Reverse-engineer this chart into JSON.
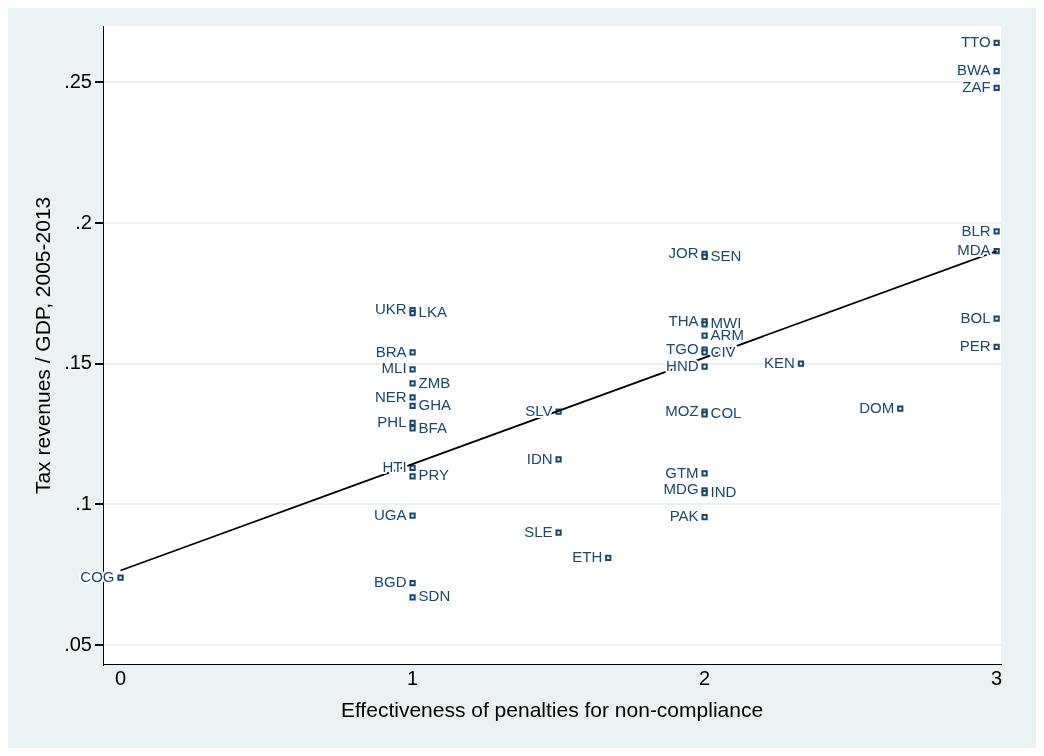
{
  "chart_data": {
    "type": "scatter",
    "xlabel": "Effectiveness of penalties for non-compliance",
    "ylabel": "Tax revenues / GDP, 2005-2013",
    "xlim": [
      -0.06,
      3.015
    ],
    "ylim": [
      0.043,
      0.27
    ],
    "xticks": [
      0,
      1,
      2,
      3
    ],
    "yticks": [
      {
        "value": 0.05,
        "label": ".05"
      },
      {
        "value": 0.1,
        "label": ".1"
      },
      {
        "value": 0.15,
        "label": ".15"
      },
      {
        "value": 0.2,
        "label": ".2"
      },
      {
        "value": 0.25,
        "label": ".25"
      }
    ],
    "grid": "y",
    "legend": false,
    "marker": "square",
    "series": [
      {
        "type": "scatter",
        "color": "#1a476f",
        "x": [
          3,
          3,
          3,
          3,
          3,
          3,
          3,
          2.33,
          2.67,
          2,
          2,
          2,
          2,
          2,
          2,
          2,
          2,
          2,
          2,
          2,
          2,
          2,
          2,
          1.5,
          1.5,
          1.5,
          1.67,
          1,
          1,
          1,
          1,
          1,
          1,
          1,
          1,
          1,
          1,
          1,
          1,
          1,
          1,
          0
        ],
        "values": [
          0.264,
          0.254,
          0.248,
          0.197,
          0.19,
          0.166,
          0.156,
          0.15,
          0.134,
          0.189,
          0.188,
          0.165,
          0.164,
          0.16,
          0.155,
          0.154,
          0.149,
          0.133,
          0.132,
          0.111,
          0.105,
          0.104,
          0.0955,
          0.133,
          0.116,
          0.09,
          0.081,
          0.169,
          0.168,
          0.154,
          0.148,
          0.143,
          0.138,
          0.135,
          0.129,
          0.127,
          0.113,
          0.11,
          0.096,
          0.072,
          0.067,
          0.074
        ]
      },
      {
        "type": "line",
        "color": "#000000",
        "marker": "none",
        "x": [
          0,
          3
        ],
        "values": [
          0.0765,
          0.19
        ]
      }
    ],
    "annotations": [
      {
        "text": "TTO",
        "x": 3,
        "y": 0.264
      },
      {
        "text": "BWA",
        "x": 3,
        "y": 0.254
      },
      {
        "text": "ZAF",
        "x": 3,
        "y": 0.248
      },
      {
        "text": "BLR",
        "x": 3,
        "y": 0.197
      },
      {
        "text": "MDA",
        "x": 3,
        "y": 0.19
      },
      {
        "text": "BOL",
        "x": 3,
        "y": 0.166
      },
      {
        "text": "PER",
        "x": 3,
        "y": 0.156
      },
      {
        "text": "KEN",
        "x": 2.33,
        "y": 0.15
      },
      {
        "text": "DOM",
        "x": 2.67,
        "y": 0.134
      },
      {
        "text": "JOR",
        "x": 2,
        "y": 0.189
      },
      {
        "text": "SEN",
        "x": 2,
        "y": 0.188
      },
      {
        "text": "THA",
        "x": 2,
        "y": 0.165
      },
      {
        "text": "MWI",
        "x": 2,
        "y": 0.164
      },
      {
        "text": "ARM",
        "x": 2,
        "y": 0.16
      },
      {
        "text": "TGO",
        "x": 2,
        "y": 0.155
      },
      {
        "text": "CIV",
        "x": 2,
        "y": 0.154
      },
      {
        "text": "HND",
        "x": 2,
        "y": 0.149
      },
      {
        "text": "MOZ",
        "x": 2,
        "y": 0.133
      },
      {
        "text": "COL",
        "x": 2,
        "y": 0.132
      },
      {
        "text": "GTM",
        "x": 2,
        "y": 0.111
      },
      {
        "text": "MDG",
        "x": 2,
        "y": 0.105
      },
      {
        "text": "IND",
        "x": 2,
        "y": 0.104
      },
      {
        "text": "PAK",
        "x": 2,
        "y": 0.0955
      },
      {
        "text": "SLV",
        "x": 1.5,
        "y": 0.133
      },
      {
        "text": "IDN",
        "x": 1.5,
        "y": 0.116
      },
      {
        "text": "SLE",
        "x": 1.5,
        "y": 0.09
      },
      {
        "text": "ETH",
        "x": 1.67,
        "y": 0.081
      },
      {
        "text": "UKR",
        "x": 1,
        "y": 0.169
      },
      {
        "text": "LKA",
        "x": 1,
        "y": 0.168
      },
      {
        "text": "BRA",
        "x": 1,
        "y": 0.154
      },
      {
        "text": "MLI",
        "x": 1,
        "y": 0.148
      },
      {
        "text": "ZMB",
        "x": 1,
        "y": 0.143
      },
      {
        "text": "NER",
        "x": 1,
        "y": 0.138
      },
      {
        "text": "GHA",
        "x": 1,
        "y": 0.135
      },
      {
        "text": "PHL",
        "x": 1,
        "y": 0.129
      },
      {
        "text": "BFA",
        "x": 1,
        "y": 0.127
      },
      {
        "text": "HTI",
        "x": 1,
        "y": 0.113
      },
      {
        "text": "PRY",
        "x": 1,
        "y": 0.11
      },
      {
        "text": "UGA",
        "x": 1,
        "y": 0.096
      },
      {
        "text": "BGD",
        "x": 1,
        "y": 0.072
      },
      {
        "text": "SDN",
        "x": 1,
        "y": 0.067
      },
      {
        "text": "COG",
        "x": 0,
        "y": 0.074
      }
    ]
  }
}
